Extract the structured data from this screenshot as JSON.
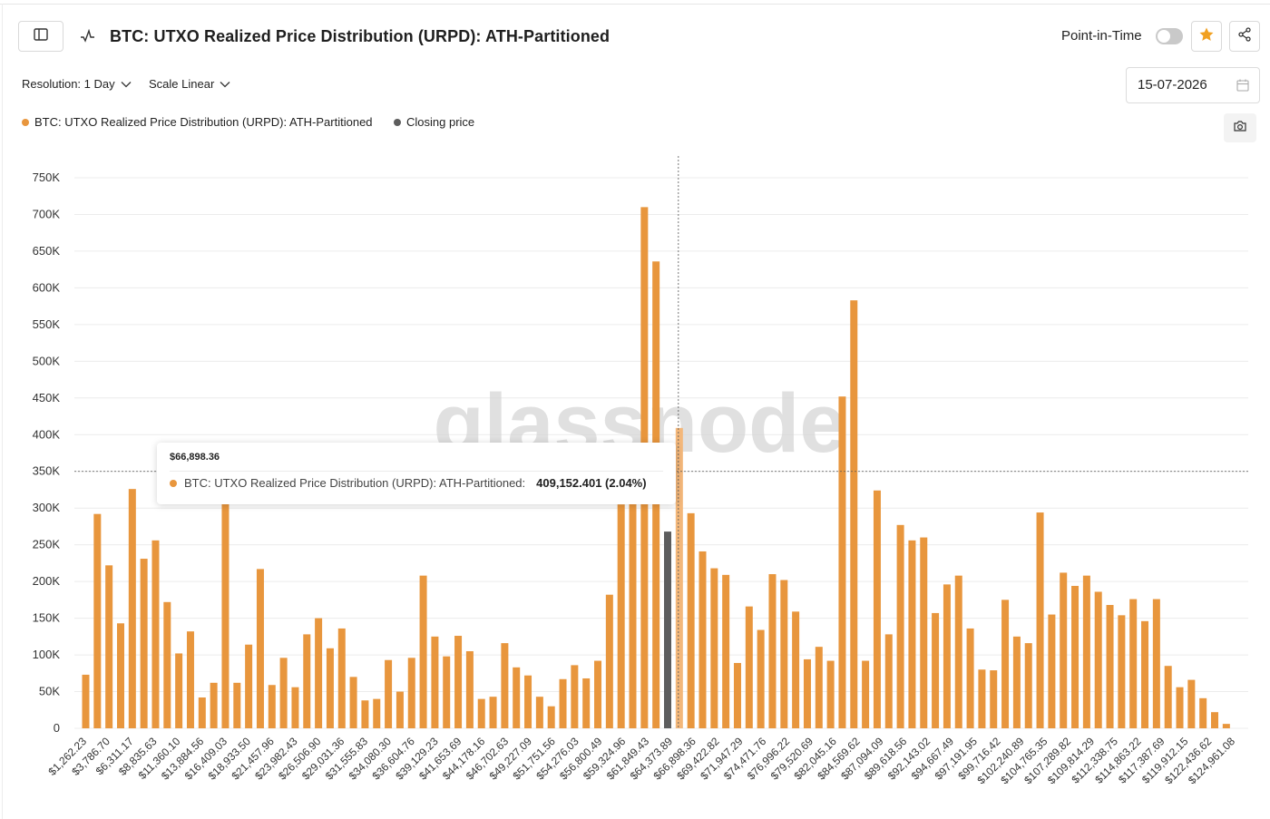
{
  "header": {
    "title": "BTC: UTXO Realized Price Distribution (URPD): ATH-Partitioned",
    "point_in_time_label": "Point-in-Time"
  },
  "controls": {
    "resolution_label": "Resolution: 1 Day",
    "scale_label": "Scale Linear",
    "date_value": "15-07-2026"
  },
  "legend": {
    "series_label": "BTC: UTXO Realized Price Distribution (URPD): ATH-Partitioned",
    "closing_label": "Closing price"
  },
  "tooltip": {
    "price": "$66,898.36",
    "series_label": "BTC: UTXO Realized Price Distribution (URPD): ATH-Partitioned:",
    "value": "409,152.401 (2.04%)"
  },
  "watermark": "glassnode",
  "colors": {
    "bar": "#e8963d",
    "closing": "#5d5d5d",
    "highlight": "#f3b77a",
    "grid": "#ececec",
    "text": "#333333"
  },
  "icons": [
    "sidebar-toggle-icon",
    "indicator-icon",
    "star-icon",
    "share-icon",
    "calendar-icon",
    "camera-icon"
  ],
  "chart_data": {
    "type": "bar",
    "ylim": [
      0,
      750000
    ],
    "yticks": [
      "0",
      "50K",
      "100K",
      "150K",
      "200K",
      "250K",
      "300K",
      "350K",
      "400K",
      "450K",
      "500K",
      "550K",
      "600K",
      "650K",
      "700K",
      "750K"
    ],
    "x_tick_labels": [
      "$1,262.23",
      "$3,786.70",
      "$6,311.17",
      "$8,835.63",
      "$11,360.10",
      "$13,884.56",
      "$16,409.03",
      "$18,933.50",
      "$21,457.96",
      "$23,982.43",
      "$26,506.90",
      "$29,031.36",
      "$31,555.83",
      "$34,080.30",
      "$36,604.76",
      "$39,129.23",
      "$41,653.69",
      "$44,178.16",
      "$46,702.63",
      "$49,227.09",
      "$51,751.56",
      "$54,276.03",
      "$56,800.49",
      "$59,324.96",
      "$61,849.43",
      "$64,373.89",
      "$66,898.36",
      "$69,422.82",
      "$71,947.29",
      "$74,471.76",
      "$76,996.22",
      "$79,520.69",
      "$82,045.16",
      "$84,569.62",
      "$87,094.09",
      "$89,618.56",
      "$92,143.02",
      "$94,667.49",
      "$97,191.95",
      "$99,716.42",
      "$102,240.89",
      "$104,765.35",
      "$107,289.82",
      "$109,814.29",
      "$112,338.75",
      "$114,863.22",
      "$117,387.69",
      "$119,912.15",
      "$122,436.62",
      "$124,961.08"
    ],
    "values": [
      73000,
      292000,
      222000,
      143000,
      326000,
      231000,
      256000,
      172000,
      102000,
      132000,
      42000,
      62000,
      350000,
      62000,
      114000,
      217000,
      59000,
      96000,
      56000,
      128000,
      150000,
      109000,
      136000,
      70000,
      38000,
      40000,
      93000,
      50000,
      96000,
      208000,
      125000,
      98000,
      126000,
      105000,
      40000,
      43000,
      116000,
      83000,
      72000,
      43000,
      30000,
      67000,
      86000,
      68000,
      92000,
      182000,
      305000,
      330000,
      710000,
      636000,
      268000,
      409152,
      293000,
      241000,
      218000,
      209000,
      89000,
      166000,
      134000,
      210000,
      202000,
      159000,
      94000,
      111000,
      92000,
      452000,
      583000,
      92000,
      324000,
      128000,
      277000,
      256000,
      260000,
      157000,
      196000,
      208000,
      136000,
      80000,
      79000,
      175000,
      125000,
      116000,
      294000,
      155000,
      212000,
      194000,
      208000,
      186000,
      168000,
      154000,
      176000,
      146000,
      176000,
      85000,
      56000,
      66000,
      41000,
      22000,
      6000
    ],
    "closing_price_index": 50,
    "hovered_index": 51,
    "crosshair_value": 350000
  }
}
